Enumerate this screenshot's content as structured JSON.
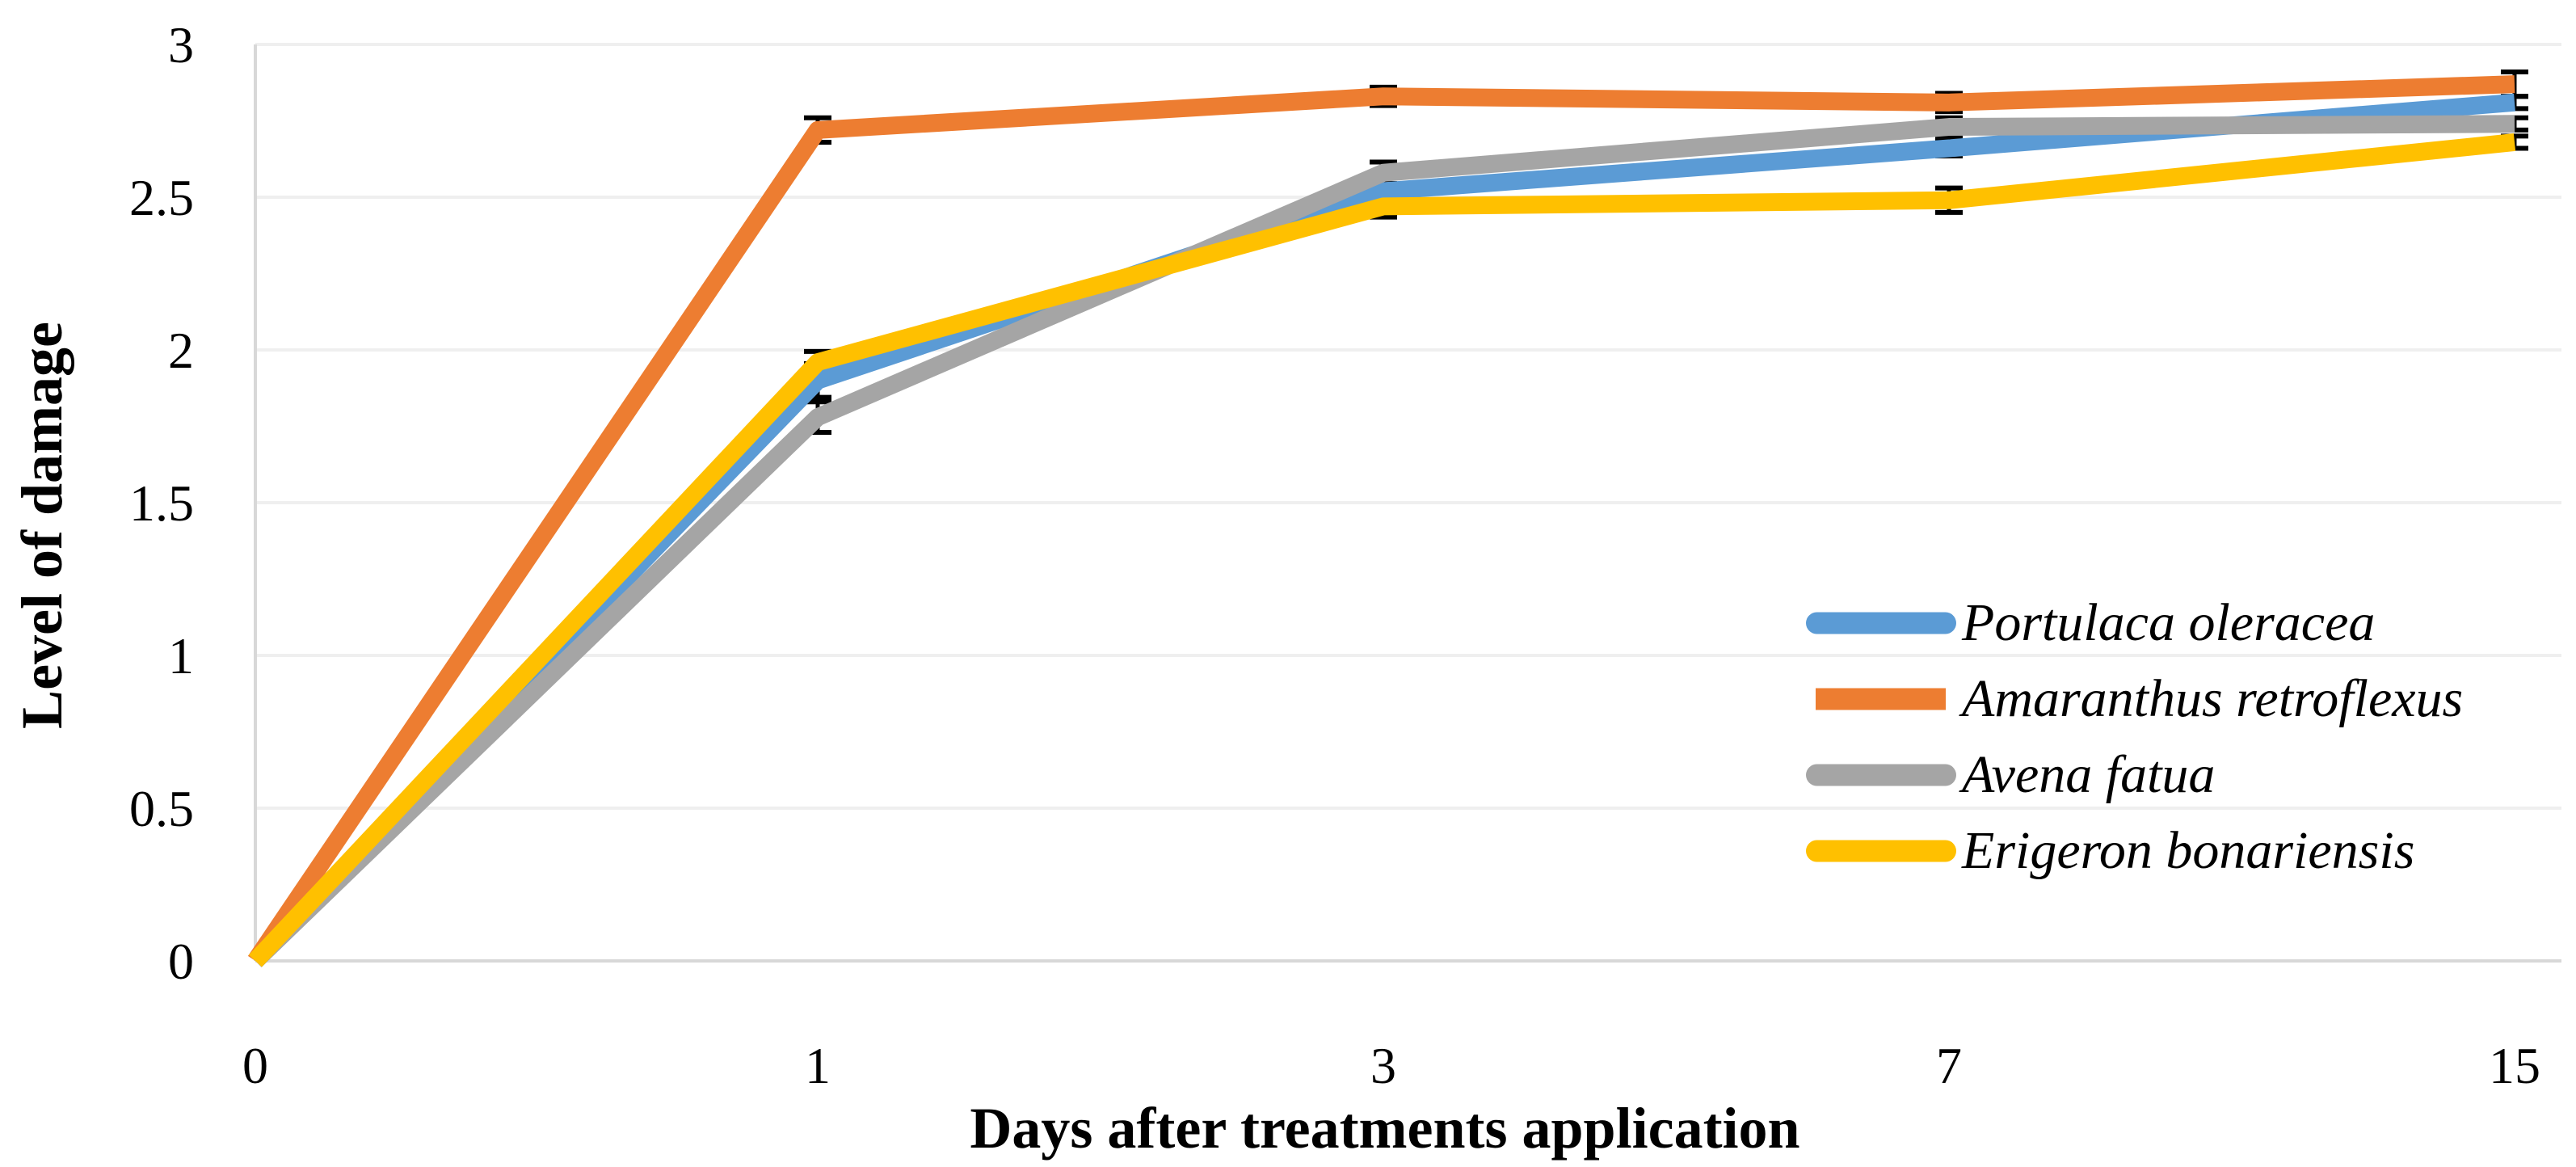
{
  "chart_data": {
    "type": "line",
    "title": "",
    "xlabel": "Days after treatments application",
    "ylabel": "Level of damage",
    "categories": [
      0,
      1,
      3,
      7,
      15
    ],
    "x_tick_labels": [
      "0",
      "1",
      "3",
      "7",
      "15"
    ],
    "y_tick_labels": [
      "0",
      "0.5",
      "1",
      "1.5",
      "2",
      "2.5",
      "3"
    ],
    "ylim": [
      0,
      3
    ],
    "ytick_step": 0.5,
    "grid": true,
    "legend_position": "right-middle",
    "series": [
      {
        "name": "Portulaca oleracea",
        "color": "#5B9BD5",
        "legend_cap": "round",
        "values": [
          0,
          1.9,
          2.52,
          2.66,
          2.81
        ],
        "errors": [
          0,
          0.055,
          0.02,
          0.025,
          0.02
        ]
      },
      {
        "name": "Amaranthus retroflexus",
        "color": "#ED7D31",
        "legend_cap": "square",
        "values": [
          0,
          2.72,
          2.83,
          2.81,
          2.87
        ],
        "errors": [
          0,
          0.04,
          0.03,
          0.03,
          0.04
        ]
      },
      {
        "name": "Avena fatua",
        "color": "#A5A5A5",
        "legend_cap": "round",
        "values": [
          0,
          1.78,
          2.58,
          2.73,
          2.74
        ],
        "errors": [
          0,
          0.05,
          0.035,
          0.03,
          0.02
        ]
      },
      {
        "name": "Erigeron bonariensis",
        "color": "#FFC000",
        "legend_cap": "round",
        "values": [
          0,
          1.96,
          2.47,
          2.49,
          2.68
        ],
        "errors": [
          0,
          0.035,
          0.035,
          0.04,
          0.02
        ]
      }
    ],
    "colors": {
      "background": "#FFFFFF",
      "gridline": "#EFEFEF",
      "axis_line": "#D8D8D8",
      "error_bar": "#000000",
      "text": "#000000"
    }
  }
}
